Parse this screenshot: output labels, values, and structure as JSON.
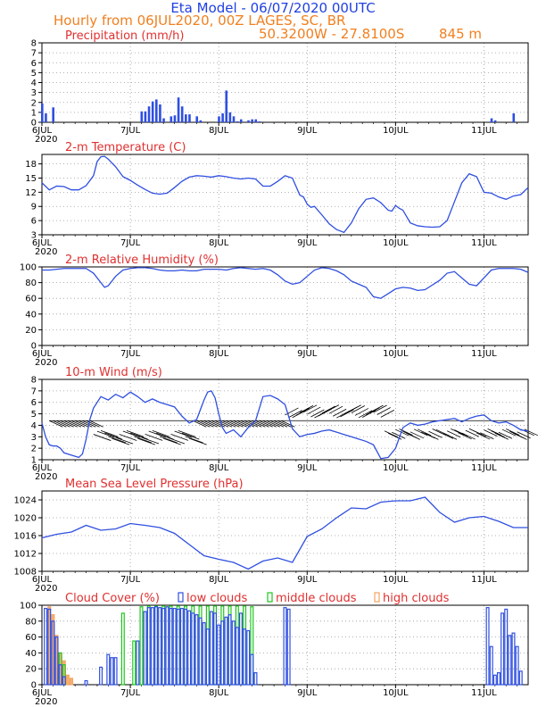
{
  "header": {
    "title": "Eta Model - 06/07/2020 00UTC",
    "subtitle": "Hourly from 06JUL2020, 00Z  LAGES, SC, BR",
    "coords": "50.3200W - 27.8100S",
    "altitude": "845  m"
  },
  "colors": {
    "title": "#2040e0",
    "subtitle": "#f08020",
    "panel_title": "#e03030",
    "series": "#2f4fe0",
    "low_clouds": "#2f4fe0",
    "middle_clouds": "#1ec81e",
    "high_clouds": "#f4a460",
    "wind_barbs": "#000000"
  },
  "x_axis": {
    "labels": [
      "6JUL",
      "7JUL",
      "8JUL",
      "9JUL",
      "10JUL",
      "11JUL"
    ],
    "year_label": "2020",
    "hours": 132
  },
  "chart_data": [
    {
      "type": "bar",
      "title": "Precipitation (mm/h)",
      "ylim": [
        0,
        8
      ],
      "yticks": [
        0,
        1,
        2,
        3,
        4,
        5,
        6,
        7,
        8
      ],
      "x": [
        0,
        1,
        3,
        27,
        28,
        29,
        30,
        31,
        32,
        33,
        35,
        36,
        37,
        38,
        39,
        40,
        42,
        43,
        48,
        49,
        50,
        51,
        52,
        53,
        54,
        56,
        57,
        58,
        59,
        122,
        123,
        128
      ],
      "values": [
        1.9,
        0.9,
        1.5,
        1.1,
        1.1,
        1.6,
        2.1,
        2.3,
        1.8,
        0.4,
        0.6,
        0.7,
        2.5,
        1.6,
        0.8,
        0.8,
        0.6,
        0.2,
        0.6,
        0.9,
        3.2,
        1.0,
        0.6,
        0.1,
        0.3,
        0.2,
        0.3,
        0.3,
        0.1,
        0.4,
        0.2,
        0.9
      ]
    },
    {
      "type": "line",
      "title": "2-m Temperature (C)",
      "ylim": [
        3,
        20
      ],
      "yticks": [
        3,
        6,
        9,
        12,
        15,
        18
      ],
      "x": [
        0,
        2,
        4,
        6,
        8,
        10,
        12,
        14,
        15,
        16,
        17,
        18,
        19,
        20,
        22,
        24,
        26,
        28,
        30,
        32,
        34,
        36,
        38,
        40,
        42,
        44,
        46,
        48,
        50,
        52,
        54,
        56,
        58,
        60,
        62,
        64,
        66,
        68,
        70,
        71,
        72,
        73,
        74,
        76,
        78,
        80,
        82,
        84,
        86,
        88,
        90,
        92,
        94,
        95,
        96,
        97,
        98,
        100,
        102,
        104,
        106,
        108,
        110,
        112,
        114,
        116,
        118,
        120,
        122,
        124,
        126,
        128,
        130,
        132
      ],
      "values": [
        14,
        12.5,
        13.3,
        13.2,
        12.5,
        12.5,
        13.4,
        15.5,
        18.5,
        19.5,
        19.6,
        19,
        18.2,
        17.4,
        15.3,
        14.5,
        13.5,
        12.6,
        11.8,
        11.6,
        11.8,
        13,
        14.3,
        15.2,
        15.5,
        15.4,
        15.2,
        15.5,
        15.3,
        15.0,
        14.8,
        15.0,
        14.8,
        13.3,
        13.3,
        14.3,
        15.5,
        15,
        11.4,
        11,
        9.5,
        8.8,
        9,
        7.2,
        5.3,
        4.1,
        3.5,
        5.5,
        8.5,
        10.5,
        10.8,
        9.8,
        8.2,
        8,
        9.2,
        8.6,
        8.2,
        5.5,
        4.9,
        4.7,
        4.6,
        4.7,
        6,
        10,
        14,
        15.9,
        15.3,
        12,
        11.8,
        11,
        10.5,
        11.2,
        11.5,
        13
      ]
    },
    {
      "type": "line",
      "title": "2-m Relative Humidity (%)",
      "ylim": [
        0,
        100
      ],
      "yticks": [
        0,
        20,
        40,
        60,
        80,
        100
      ],
      "x": [
        0,
        2,
        4,
        6,
        8,
        10,
        12,
        14,
        16,
        17,
        18,
        20,
        22,
        24,
        26,
        28,
        30,
        32,
        34,
        36,
        38,
        40,
        42,
        44,
        46,
        48,
        50,
        52,
        54,
        56,
        58,
        60,
        62,
        64,
        66,
        68,
        70,
        72,
        74,
        76,
        78,
        80,
        82,
        84,
        86,
        88,
        90,
        92,
        94,
        96,
        98,
        100,
        102,
        104,
        106,
        108,
        110,
        112,
        114,
        116,
        118,
        120,
        122,
        124,
        126,
        128,
        130,
        132
      ],
      "values": [
        96,
        96,
        97,
        98,
        98,
        98,
        98,
        92,
        80,
        74,
        76,
        88,
        96,
        98,
        99,
        99,
        98,
        96,
        95,
        95,
        96,
        95,
        95,
        97,
        97,
        97,
        96,
        98,
        99,
        98,
        97,
        98,
        96,
        90,
        82,
        78,
        80,
        88,
        96,
        99,
        98,
        95,
        90,
        82,
        78,
        74,
        62,
        60,
        66,
        72,
        74,
        73,
        70,
        71,
        77,
        83,
        92,
        94,
        86,
        78,
        76,
        86,
        96,
        98,
        98,
        98,
        97,
        93
      ]
    },
    {
      "type": "line",
      "title": "10-m Wind (m/s)",
      "ylim": [
        1,
        8
      ],
      "yticks": [
        1,
        2,
        3,
        4,
        5,
        6,
        7,
        8
      ],
      "x": [
        0,
        1,
        2,
        3,
        4,
        5,
        6,
        8,
        10,
        11,
        12,
        13,
        14,
        16,
        18,
        20,
        22,
        24,
        26,
        28,
        30,
        32,
        34,
        36,
        38,
        40,
        42,
        44,
        45,
        46,
        47,
        48,
        49,
        50,
        52,
        54,
        56,
        58,
        60,
        62,
        64,
        66,
        68,
        70,
        72,
        74,
        76,
        78,
        80,
        82,
        84,
        86,
        88,
        90,
        92,
        94,
        96,
        98,
        100,
        102,
        104,
        106,
        108,
        110,
        112,
        114,
        116,
        118,
        120,
        122,
        124,
        126,
        128,
        130,
        132
      ],
      "values": [
        4.2,
        3,
        2.3,
        2.2,
        2.2,
        2.0,
        1.6,
        1.4,
        1.2,
        1.5,
        2.8,
        4.5,
        5.5,
        6.5,
        6.2,
        6.7,
        6.4,
        6.9,
        6.5,
        6.0,
        6.3,
        6.0,
        5.8,
        5.6,
        4.8,
        4.2,
        4.5,
        6.2,
        6.9,
        7.0,
        6.4,
        5.0,
        3.8,
        3.3,
        3.6,
        3.0,
        3.8,
        4.4,
        6.5,
        6.6,
        6.3,
        5.8,
        3.7,
        3.0,
        3.2,
        3.3,
        3.5,
        3.6,
        3.4,
        3.2,
        3.0,
        2.8,
        2.6,
        2.3,
        1.1,
        1.2,
        2.0,
        3.8,
        4.2,
        4.0,
        4.1,
        4.3,
        4.4,
        4.5,
        4.6,
        4.3,
        4.6,
        4.8,
        4.9,
        4.4,
        4.2,
        4.3,
        4.0,
        3.6,
        3.5
      ],
      "barbs_note": "wind barbs drawn along the hourly time axis"
    },
    {
      "type": "line",
      "title": "Mean Sea Level Pressure (hPa)",
      "ylim": [
        1008,
        1026
      ],
      "yticks": [
        1008,
        1012,
        1016,
        1020,
        1024
      ],
      "x": [
        0,
        4,
        8,
        12,
        16,
        20,
        24,
        28,
        32,
        36,
        40,
        44,
        48,
        52,
        56,
        60,
        64,
        68,
        72,
        76,
        80,
        84,
        88,
        92,
        96,
        100,
        104,
        108,
        112,
        116,
        120,
        124,
        128,
        132
      ],
      "values": [
        1015.5,
        1016.3,
        1016.8,
        1018.3,
        1017.2,
        1017.5,
        1018.7,
        1018.3,
        1017.8,
        1016.5,
        1014,
        1011.5,
        1010.7,
        1010,
        1008.5,
        1010.3,
        1011,
        1010,
        1015.8,
        1017.5,
        1020,
        1022.2,
        1022,
        1023.5,
        1023.8,
        1023.8,
        1024.6,
        1021.2,
        1019,
        1020,
        1020.3,
        1019.2,
        1017.8,
        1017.8
      ]
    },
    {
      "type": "bar",
      "title": "Cloud Cover (%)",
      "legend": [
        "low clouds",
        "middle clouds",
        "high clouds"
      ],
      "ylim": [
        0,
        100
      ],
      "yticks": [
        0,
        20,
        40,
        60,
        80,
        100
      ],
      "series": [
        {
          "name": "low clouds",
          "x": [
            1,
            2,
            3,
            4,
            5,
            6,
            12,
            16,
            18,
            19,
            20,
            26,
            28,
            29,
            30,
            31,
            32,
            33,
            34,
            35,
            36,
            37,
            38,
            39,
            40,
            41,
            42,
            43,
            44,
            45,
            46,
            47,
            48,
            49,
            50,
            51,
            52,
            53,
            54,
            55,
            56,
            57,
            58,
            66,
            67,
            121,
            122,
            123,
            124,
            125,
            126,
            127,
            128,
            129,
            130
          ],
          "values": [
            96,
            95,
            80,
            60,
            25,
            10,
            5,
            22,
            38,
            34,
            34,
            55,
            92,
            97,
            97,
            98,
            97,
            96,
            98,
            96,
            96,
            95,
            96,
            95,
            93,
            90,
            88,
            84,
            78,
            70,
            92,
            90,
            75,
            80,
            85,
            88,
            80,
            72,
            90,
            70,
            68,
            38,
            15,
            97,
            95,
            97,
            48,
            12,
            15,
            90,
            95,
            62,
            65,
            48,
            17
          ]
        },
        {
          "name": "middle clouds",
          "x": [
            5,
            6,
            22,
            25,
            27,
            29,
            31,
            33,
            35,
            37,
            39,
            41,
            43,
            45,
            47,
            49,
            51,
            53,
            55,
            57
          ],
          "values": [
            40,
            25,
            90,
            55,
            98,
            99,
            99,
            99,
            99,
            99,
            99,
            99,
            99,
            99,
            99,
            99,
            99,
            99,
            99,
            98
          ]
        },
        {
          "name": "high clouds",
          "x": [
            2,
            3,
            4,
            5,
            6,
            7,
            8
          ],
          "values": [
            98,
            88,
            62,
            40,
            30,
            12,
            8
          ]
        }
      ]
    }
  ]
}
